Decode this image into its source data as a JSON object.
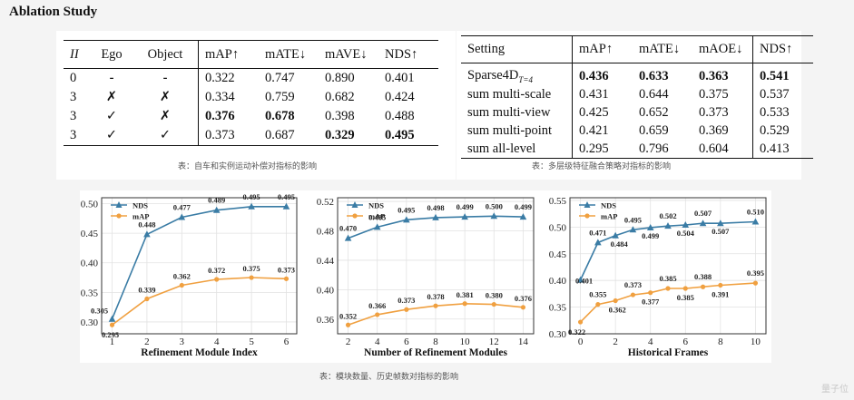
{
  "heading": "Ablation Study",
  "table1": {
    "headers": [
      "II",
      "Ego",
      "Object",
      "mAP↑",
      "mATE↓",
      "mAVE↓",
      "NDS↑"
    ],
    "rows": [
      {
        "ii": "0",
        "ego": "-",
        "object": "-",
        "map": "0.322",
        "mate": "0.747",
        "mave": "0.890",
        "nds": "0.401"
      },
      {
        "ii": "3",
        "ego": "✗",
        "object": "✗",
        "map": "0.334",
        "mate": "0.759",
        "mave": "0.682",
        "nds": "0.424"
      },
      {
        "ii": "3",
        "ego": "✓",
        "object": "✗",
        "map": "0.376",
        "mate": "0.678",
        "mave": "0.398",
        "nds": "0.488"
      },
      {
        "ii": "3",
        "ego": "✓",
        "object": "✓",
        "map": "0.373",
        "mate": "0.687",
        "mave": "0.329",
        "nds": "0.495"
      }
    ],
    "caption": "表：自车和实例运动补偿对指标的影响"
  },
  "table2": {
    "headers": [
      "Setting",
      "mAP↑",
      "mATE↓",
      "mAOE↓",
      "NDS↑"
    ],
    "rows": [
      {
        "setting": "Sparse4D",
        "sub": "T=4",
        "map": "0.436",
        "mate": "0.633",
        "maoe": "0.363",
        "nds": "0.541"
      },
      {
        "setting": "sum multi-scale",
        "map": "0.431",
        "mate": "0.644",
        "maoe": "0.375",
        "nds": "0.537"
      },
      {
        "setting": "sum multi-view",
        "map": "0.425",
        "mate": "0.652",
        "maoe": "0.373",
        "nds": "0.533"
      },
      {
        "setting": "sum multi-point",
        "map": "0.421",
        "mate": "0.659",
        "maoe": "0.369",
        "nds": "0.529"
      },
      {
        "setting": "sum all-level",
        "map": "0.295",
        "mate": "0.796",
        "maoe": "0.604",
        "nds": "0.413"
      }
    ],
    "caption": "表：多层级特征融合策略对指标的影响"
  },
  "charts_caption": "表：模块数量、历史帧数对指标的影响",
  "watermark": "量子位",
  "chart_data": [
    {
      "type": "line",
      "xlabel": "Refinement Module Index",
      "x": [
        1,
        2,
        3,
        4,
        5,
        6
      ],
      "xticks": [
        "1",
        "2",
        "3",
        "4",
        "5",
        "6"
      ],
      "ylim": [
        0.28,
        0.51
      ],
      "yticks": [
        "0.30",
        "0.35",
        "0.40",
        "0.45",
        "0.50"
      ],
      "series": [
        {
          "name": "NDS",
          "color": "#3a7ca5",
          "marker": "triangle",
          "values": [
            0.305,
            0.448,
            0.477,
            0.489,
            0.495,
            0.495
          ],
          "labels": [
            "0.305",
            "0.448",
            "0.477",
            "0.489",
            "0.495",
            "0.495"
          ]
        },
        {
          "name": "mAP",
          "color": "#f0a040",
          "marker": "circle",
          "values": [
            0.295,
            0.339,
            0.362,
            0.372,
            0.375,
            0.373
          ],
          "labels": [
            "0.295",
            "0.339",
            "0.362",
            "0.372",
            "0.375",
            "0.373"
          ]
        }
      ]
    },
    {
      "type": "line",
      "xlabel": "Number of Refinement Modules",
      "x": [
        2,
        4,
        6,
        8,
        10,
        12,
        14
      ],
      "xticks": [
        "2",
        "4",
        "6",
        "8",
        "10",
        "12",
        "14"
      ],
      "ylim": [
        0.34,
        0.525
      ],
      "yticks": [
        "0.36",
        "0.40",
        "0.44",
        "0.48",
        "0.52"
      ],
      "series": [
        {
          "name": "NDS",
          "color": "#3a7ca5",
          "marker": "triangle",
          "values": [
            0.47,
            0.485,
            0.495,
            0.498,
            0.499,
            0.5,
            0.499
          ],
          "labels": [
            "0.470",
            "0.485",
            "0.495",
            "0.498",
            "0.499",
            "0.500",
            "0.499"
          ]
        },
        {
          "name": "mAP",
          "color": "#f0a040",
          "marker": "circle",
          "values": [
            0.352,
            0.366,
            0.373,
            0.378,
            0.381,
            0.38,
            0.376
          ],
          "labels": [
            "0.352",
            "0.366",
            "0.373",
            "0.378",
            "0.381",
            "0.380",
            "0.376"
          ]
        }
      ]
    },
    {
      "type": "line",
      "xlabel": "Historical Frames",
      "x": [
        0,
        1,
        2,
        3,
        4,
        5,
        6,
        7,
        8,
        10
      ],
      "xticks": [
        "0",
        "2",
        "4",
        "6",
        "8",
        "10"
      ],
      "ylim": [
        0.3,
        0.555
      ],
      "yticks": [
        "0.30",
        "0.35",
        "0.40",
        "0.45",
        "0.50",
        "0.55"
      ],
      "series": [
        {
          "name": "NDS",
          "color": "#3a7ca5",
          "marker": "triangle",
          "values": [
            0.401,
            0.471,
            0.484,
            0.495,
            0.499,
            0.502,
            0.504,
            0.507,
            0.507,
            0.51
          ],
          "labels": [
            "0.401",
            "0.471",
            "0.484",
            "0.495",
            "0.499",
            "0.502",
            "0.504",
            "0.507",
            "0.507",
            "0.510"
          ]
        },
        {
          "name": "mAP",
          "color": "#f0a040",
          "marker": "circle",
          "values": [
            0.322,
            0.355,
            0.362,
            0.373,
            0.377,
            0.385,
            0.385,
            0.388,
            0.391,
            0.395
          ],
          "labels": [
            "0.322",
            "0.355",
            "0.362",
            "0.373",
            "0.377",
            "0.385",
            "0.385",
            "0.388",
            "0.391",
            "0.395"
          ]
        }
      ]
    }
  ]
}
